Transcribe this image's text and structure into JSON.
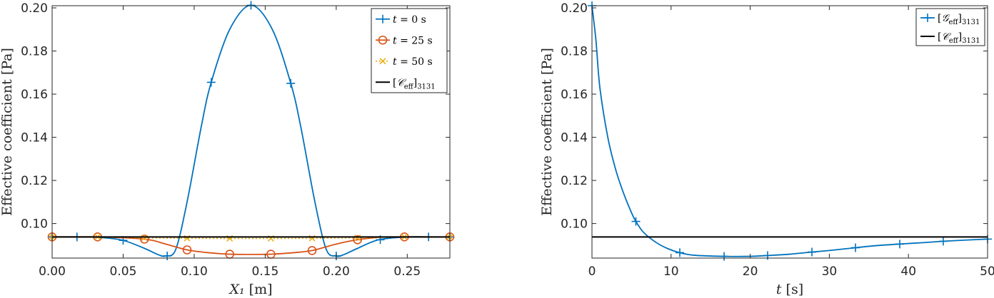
{
  "chart_data": [
    {
      "type": "line",
      "xlabel": "X₁ [m]",
      "ylabel": "Effective coefficient [Pa]",
      "xlim": [
        0,
        0.28
      ],
      "ylim": [
        0.084,
        0.201
      ],
      "xticks": [
        "0.00",
        "0.05",
        "0.10",
        "0.15",
        "0.20",
        "0.25"
      ],
      "yticks": [
        "0.10",
        "0.12",
        "0.14",
        "0.16",
        "0.18",
        "0.20"
      ],
      "legend_position": "top-right",
      "series": [
        {
          "name": "t = 0 s",
          "color": "#0072BD",
          "marker": "plus",
          "line": "solid",
          "x": [
            0,
            0.0175,
            0.035,
            0.05,
            0.065,
            0.075,
            0.08,
            0.087,
            0.095,
            0.105,
            0.112,
            0.125,
            0.14,
            0.155,
            0.168,
            0.175,
            0.185,
            0.193,
            0.2,
            0.205,
            0.215,
            0.23,
            0.25,
            0.265,
            0.28
          ],
          "y": [
            0.0938,
            0.0938,
            0.0935,
            0.0922,
            0.0885,
            0.0855,
            0.085,
            0.088,
            0.11,
            0.145,
            0.1655,
            0.19,
            0.2012,
            0.19,
            0.165,
            0.145,
            0.11,
            0.088,
            0.085,
            0.0855,
            0.0885,
            0.0925,
            0.0938,
            0.0938,
            0.0938
          ],
          "markers_x": [
            0,
            0.0175,
            0.05,
            0.081,
            0.112,
            0.14,
            0.168,
            0.2,
            0.231,
            0.265,
            0.28
          ],
          "markers_y": [
            0.0938,
            0.0938,
            0.0922,
            0.085,
            0.1655,
            0.2012,
            0.165,
            0.085,
            0.0925,
            0.0938,
            0.0938
          ]
        },
        {
          "name": "t = 25 s",
          "color": "#D95319",
          "marker": "circle",
          "line": "solid",
          "x": [
            0,
            0.032,
            0.065,
            0.08,
            0.095,
            0.11,
            0.125,
            0.14,
            0.154,
            0.17,
            0.183,
            0.2,
            0.215,
            0.232,
            0.248,
            0.28
          ],
          "y": [
            0.0938,
            0.0938,
            0.0928,
            0.0905,
            0.0878,
            0.0865,
            0.0858,
            0.0857,
            0.0858,
            0.0865,
            0.0875,
            0.0905,
            0.0925,
            0.0937,
            0.0938,
            0.0938
          ],
          "markers_x": [
            0,
            0.032,
            0.065,
            0.095,
            0.125,
            0.154,
            0.183,
            0.215,
            0.248,
            0.28
          ],
          "markers_y": [
            0.0938,
            0.0938,
            0.0928,
            0.0878,
            0.0858,
            0.0858,
            0.0875,
            0.0925,
            0.0938,
            0.0938
          ]
        },
        {
          "name": "t = 50 s",
          "color": "#EDB120",
          "marker": "x",
          "line": "dotted",
          "x": [
            0,
            0.032,
            0.065,
            0.095,
            0.125,
            0.154,
            0.183,
            0.215,
            0.248,
            0.28
          ],
          "y": [
            0.0938,
            0.0938,
            0.0934,
            0.0932,
            0.0931,
            0.0931,
            0.0932,
            0.0934,
            0.0938,
            0.0938
          ],
          "markers_x": [
            0,
            0.032,
            0.065,
            0.095,
            0.125,
            0.154,
            0.183,
            0.215,
            0.248,
            0.28
          ],
          "markers_y": [
            0.0938,
            0.0938,
            0.0934,
            0.0932,
            0.0931,
            0.0931,
            0.0932,
            0.0934,
            0.0938,
            0.0938
          ]
        },
        {
          "name": "[C_eff]3131",
          "color": "#000000",
          "marker": "none",
          "line": "solid",
          "x": [
            0,
            0.28
          ],
          "y": [
            0.0938,
            0.0938
          ]
        }
      ]
    },
    {
      "type": "line",
      "xlabel": "t [s]",
      "ylabel": "Effective coefficient [Pa]",
      "xlim": [
        0,
        50
      ],
      "ylim": [
        0.084,
        0.201
      ],
      "xticks": [
        "0",
        "10",
        "20",
        "30",
        "40",
        "50"
      ],
      "yticks": [
        "0.10",
        "0.12",
        "0.14",
        "0.16",
        "0.18",
        "0.20"
      ],
      "legend_position": "top-right",
      "series": [
        {
          "name": "[G_eff]3131",
          "color": "#0072BD",
          "marker": "plus",
          "line": "solid",
          "x": [
            0,
            0.5,
            1,
            2,
            3,
            4,
            5,
            5.55,
            6.5,
            8,
            9.5,
            11.1,
            13,
            16.7,
            20,
            22.2,
            25,
            27.8,
            30,
            33.3,
            36,
            38.9,
            42,
            44.4,
            47,
            50
          ],
          "y": [
            0.201,
            0.185,
            0.163,
            0.14,
            0.125,
            0.114,
            0.105,
            0.101,
            0.096,
            0.0915,
            0.0885,
            0.0865,
            0.0853,
            0.0848,
            0.0848,
            0.0852,
            0.0858,
            0.0868,
            0.0875,
            0.0888,
            0.0898,
            0.0905,
            0.0912,
            0.0918,
            0.0923,
            0.0928
          ],
          "markers_x": [
            0,
            5.55,
            11.1,
            16.7,
            22.2,
            27.8,
            33.3,
            38.9,
            44.4,
            50
          ],
          "markers_y": [
            0.201,
            0.101,
            0.0865,
            0.0848,
            0.0852,
            0.0868,
            0.0888,
            0.0905,
            0.0918,
            0.0928
          ]
        },
        {
          "name": "[C_eff]3131",
          "color": "#000000",
          "marker": "none",
          "line": "solid",
          "x": [
            0,
            50
          ],
          "y": [
            0.0938,
            0.0938
          ]
        }
      ]
    }
  ]
}
